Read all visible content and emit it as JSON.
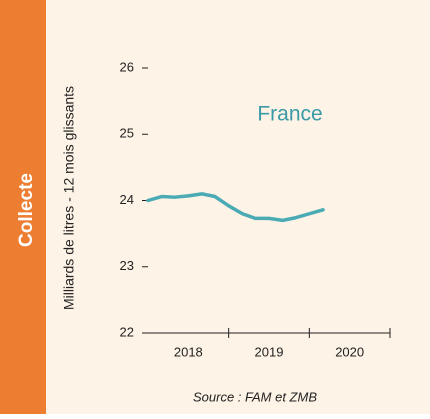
{
  "sidebar": {
    "label": "Collecte"
  },
  "chart_data": {
    "type": "line",
    "ylabel": "Milliards de litres - 12 mois glissants",
    "annotation": "France",
    "source": "Source : FAM et ZMB",
    "x": [
      2017.5,
      2017.67,
      2017.83,
      2018.0,
      2018.17,
      2018.33,
      2018.5,
      2018.67,
      2018.83,
      2019.0,
      2019.17,
      2019.33,
      2019.5,
      2019.67
    ],
    "series": [
      {
        "name": "France",
        "color": "#4aabb5",
        "values": [
          24.0,
          24.06,
          24.05,
          24.07,
          24.1,
          24.06,
          23.92,
          23.8,
          23.73,
          23.73,
          23.7,
          23.74,
          23.8,
          23.86
        ]
      }
    ],
    "xlim": [
      2017.5,
      2020.5
    ],
    "xticks": [
      2018,
      2019,
      2020
    ],
    "ylim": [
      22,
      26
    ],
    "yticks": [
      22,
      23,
      24,
      25,
      26
    ]
  }
}
